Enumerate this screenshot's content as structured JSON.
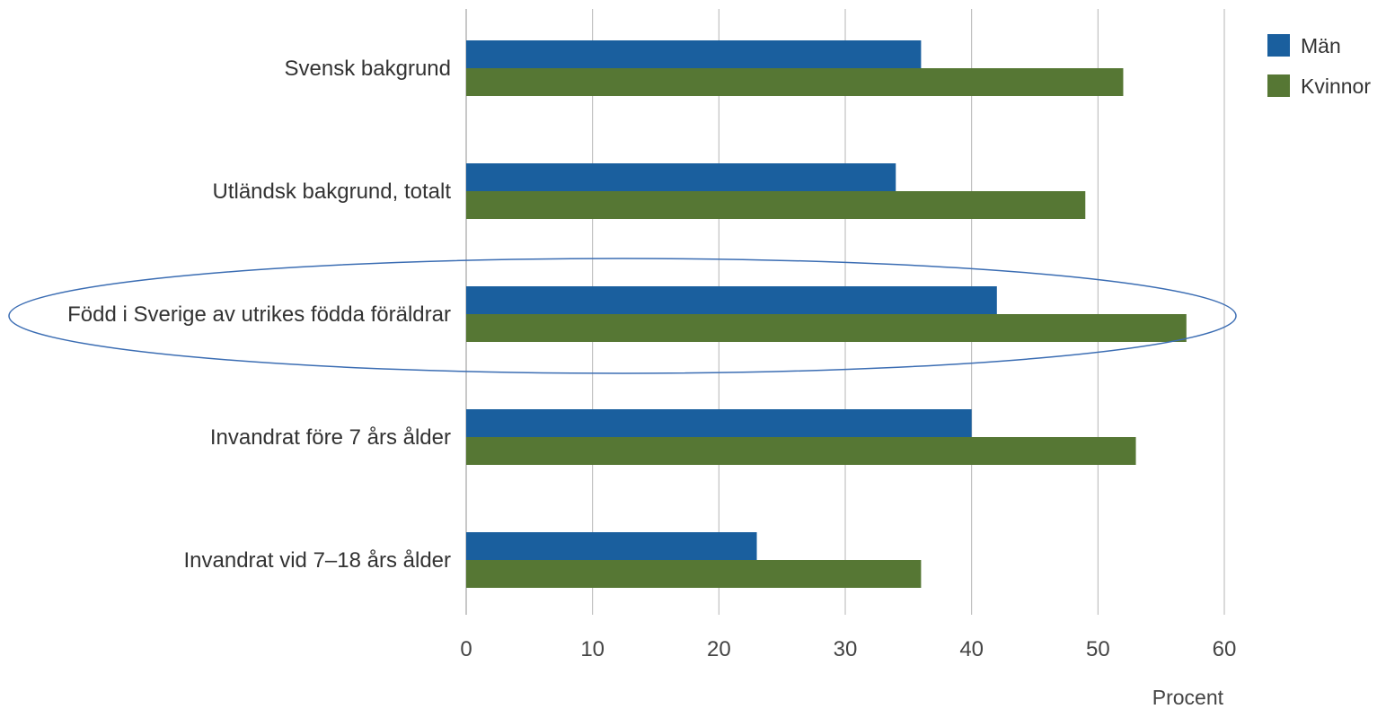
{
  "chart_data": {
    "type": "bar",
    "orientation": "horizontal",
    "categories": [
      "Svensk bakgrund",
      "Utländsk bakgrund, totalt",
      "Född i Sverige av utrikes födda föräldrar",
      "Invandrat före 7 års ålder",
      "Invandrat vid 7–18 års ålder"
    ],
    "series": [
      {
        "name": "Män",
        "color": "#1a5f9e",
        "values": [
          36,
          34,
          42,
          40,
          23
        ]
      },
      {
        "name": "Kvinnor",
        "color": "#567734",
        "values": [
          52,
          49,
          57,
          53,
          36
        ]
      }
    ],
    "xlabel": "Procent",
    "xlim": [
      0,
      60
    ],
    "ticks": [
      "0",
      "10",
      "20",
      "30",
      "40",
      "50",
      "60"
    ],
    "grid": true,
    "legend_position": "top-right",
    "highlighted_category": "Född i Sverige av utrikes födda föräldrar",
    "highlight_color": "#3b6db3"
  }
}
